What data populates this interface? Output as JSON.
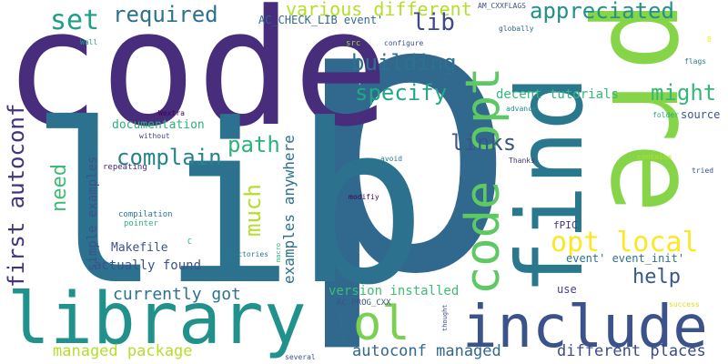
{
  "words": [
    {
      "text": "p",
      "color": "#31688e"
    },
    {
      "text": "code",
      "color": "#472d7b"
    },
    {
      "text": "lib",
      "color": "#2c728e"
    },
    {
      "text": "pre",
      "color": "#86d549"
    },
    {
      "text": "find",
      "color": "#2a788e"
    },
    {
      "text": "library",
      "color": "#21918c"
    },
    {
      "text": "include",
      "color": "#3b528b"
    },
    {
      "text": "code opt",
      "color": "#5ec962"
    },
    {
      "text": "ol",
      "color": "#7ad151"
    },
    {
      "text": "first autoconf",
      "color": "#46337e"
    },
    {
      "text": "set",
      "color": "#1f9e89"
    },
    {
      "text": "required",
      "color": "#2c728e"
    },
    {
      "text": "appreciated",
      "color": "#21918c"
    },
    {
      "text": "various different",
      "color": "#b5de2b"
    },
    {
      "text": "lib",
      "color": "#3e4a89"
    },
    {
      "text": "building",
      "color": "#2c728e"
    },
    {
      "text": "specify",
      "color": "#22a884"
    },
    {
      "text": "might",
      "color": "#35b779"
    },
    {
      "text": "complain",
      "color": "#25848e"
    },
    {
      "text": "path",
      "color": "#2db27d"
    },
    {
      "text": "links",
      "color": "#39558c"
    },
    {
      "text": "opt local",
      "color": "#fde725"
    },
    {
      "text": "much",
      "color": "#b5de2b"
    },
    {
      "text": "need",
      "color": "#3dbc74"
    },
    {
      "text": "examples anywhere",
      "color": "#2d708e"
    },
    {
      "text": "simple examples",
      "color": "#3b528b"
    },
    {
      "text": "help",
      "color": "#38588c"
    },
    {
      "text": "currently got",
      "color": "#2c728e"
    },
    {
      "text": "actually found",
      "color": "#3b528b"
    },
    {
      "text": "managed package",
      "color": "#b5de2b"
    },
    {
      "text": "autoconf managed",
      "color": "#31688e"
    },
    {
      "text": "different places",
      "color": "#3e4a89"
    },
    {
      "text": "version installed",
      "color": "#3dbc74"
    },
    {
      "text": "decent tutorials",
      "color": "#35b779"
    },
    {
      "text": "documentation",
      "color": "#2db27d"
    },
    {
      "text": "AC_CHECK_LIB event'",
      "color": "#31688e"
    },
    {
      "text": "AM_CXXFLAGS",
      "color": "#3b528b"
    },
    {
      "text": "source",
      "color": "#39568c"
    },
    {
      "text": "Makefile",
      "color": "#3b528b"
    },
    {
      "text": "event' event_init'",
      "color": "#2c728e"
    },
    {
      "text": "fPIC",
      "color": "#46327e"
    },
    {
      "text": "use",
      "color": "#424086"
    },
    {
      "text": "AC_PROG_CXX",
      "color": "#3b528b"
    },
    {
      "text": "compilation",
      "color": "#2a788e"
    },
    {
      "text": "pointer",
      "color": "#2db27d"
    },
    {
      "text": "repeating",
      "color": "#482878"
    },
    {
      "text": "without",
      "color": "#414487"
    },
    {
      "text": "Wextra",
      "color": "#440154"
    },
    {
      "text": "directories",
      "color": "#2a788e"
    },
    {
      "text": "macro",
      "color": "#2db27d"
    },
    {
      "text": "modifiy",
      "color": "#440154"
    },
    {
      "text": "avoid",
      "color": "#2a788e"
    },
    {
      "text": "Thanks",
      "color": "#46337e"
    },
    {
      "text": "contains",
      "color": "#b5de2b"
    },
    {
      "text": "tried",
      "color": "#3b528b"
    },
    {
      "text": "folder",
      "color": "#22a884"
    },
    {
      "text": "advance",
      "color": "#21918c"
    },
    {
      "text": "src",
      "color": "#8fd744"
    },
    {
      "text": "configure",
      "color": "#3b528b"
    },
    {
      "text": "globally",
      "color": "#31688e"
    },
    {
      "text": "flags",
      "color": "#2a788e"
    },
    {
      "text": "B",
      "color": "#fde725"
    },
    {
      "text": "Wall",
      "color": "#1fa088"
    },
    {
      "text": "C",
      "color": "#22a884"
    },
    {
      "text": "success",
      "color": "#d8e219"
    },
    {
      "text": "thought",
      "color": "#3e4a89"
    },
    {
      "text": "project",
      "color": "#2c728e"
    },
    {
      "text": "several",
      "color": "#3b528b"
    }
  ]
}
